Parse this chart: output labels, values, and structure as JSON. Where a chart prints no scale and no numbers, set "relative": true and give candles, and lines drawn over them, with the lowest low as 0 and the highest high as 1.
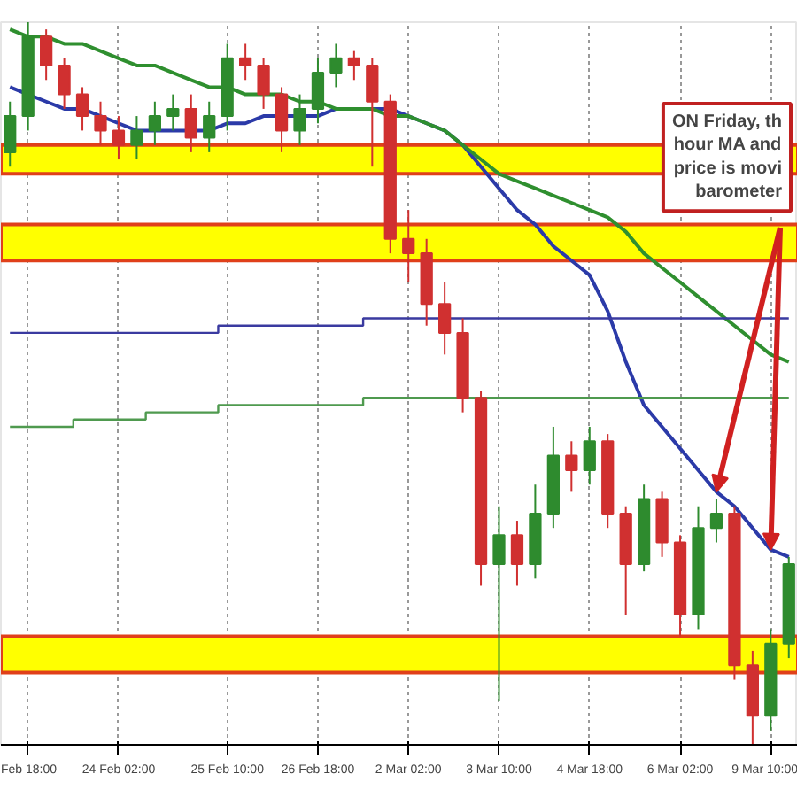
{
  "chart_data": {
    "type": "candlestick",
    "relative": true,
    "categories": [
      null,
      "Feb 18:00",
      null,
      null,
      null,
      null,
      "24 Feb 02:00",
      null,
      null,
      null,
      null,
      null,
      "25 Feb 10:00",
      null,
      null,
      null,
      null,
      "26 Feb 18:00",
      null,
      null,
      null,
      null,
      "2 Mar 02:00",
      null,
      null,
      null,
      null,
      "3 Mar 10:00",
      null,
      null,
      null,
      null,
      "4 Mar 18:00",
      null,
      null,
      null,
      null,
      "6 Mar 02:00",
      null,
      null,
      null,
      null,
      "9 Mar 10:00",
      null
    ],
    "ohlc": [
      [
        0.82,
        0.89,
        0.8,
        0.87
      ],
      [
        0.87,
        1.0,
        0.85,
        0.98
      ],
      [
        0.98,
        0.99,
        0.92,
        0.94
      ],
      [
        0.94,
        0.95,
        0.88,
        0.9
      ],
      [
        0.9,
        0.91,
        0.85,
        0.87
      ],
      [
        0.87,
        0.89,
        0.83,
        0.85
      ],
      [
        0.85,
        0.87,
        0.81,
        0.83
      ],
      [
        0.83,
        0.87,
        0.81,
        0.85
      ],
      [
        0.85,
        0.89,
        0.83,
        0.87
      ],
      [
        0.87,
        0.9,
        0.85,
        0.88
      ],
      [
        0.88,
        0.9,
        0.82,
        0.84
      ],
      [
        0.84,
        0.89,
        0.82,
        0.87
      ],
      [
        0.87,
        0.97,
        0.85,
        0.95
      ],
      [
        0.95,
        0.97,
        0.92,
        0.94
      ],
      [
        0.94,
        0.95,
        0.88,
        0.9
      ],
      [
        0.9,
        0.91,
        0.82,
        0.85
      ],
      [
        0.85,
        0.9,
        0.83,
        0.88
      ],
      [
        0.88,
        0.95,
        0.86,
        0.93
      ],
      [
        0.93,
        0.97,
        0.91,
        0.95
      ],
      [
        0.95,
        0.96,
        0.92,
        0.94
      ],
      [
        0.94,
        0.95,
        0.8,
        0.89
      ],
      [
        0.89,
        0.9,
        0.68,
        0.7
      ],
      [
        0.7,
        0.74,
        0.64,
        0.68
      ],
      [
        0.68,
        0.7,
        0.58,
        0.61
      ],
      [
        0.61,
        0.64,
        0.54,
        0.57
      ],
      [
        0.57,
        0.59,
        0.46,
        0.48
      ],
      [
        0.48,
        0.49,
        0.22,
        0.25
      ],
      [
        0.25,
        0.33,
        0.06,
        0.29
      ],
      [
        0.29,
        0.31,
        0.22,
        0.25
      ],
      [
        0.25,
        0.36,
        0.23,
        0.32
      ],
      [
        0.32,
        0.44,
        0.3,
        0.4
      ],
      [
        0.4,
        0.42,
        0.35,
        0.38
      ],
      [
        0.38,
        0.44,
        0.36,
        0.42
      ],
      [
        0.42,
        0.43,
        0.3,
        0.32
      ],
      [
        0.32,
        0.33,
        0.18,
        0.25
      ],
      [
        0.25,
        0.36,
        0.24,
        0.34
      ],
      [
        0.34,
        0.35,
        0.26,
        0.28
      ],
      [
        0.28,
        0.29,
        0.15,
        0.18
      ],
      [
        0.18,
        0.33,
        0.16,
        0.3
      ],
      [
        0.3,
        0.34,
        0.28,
        0.32
      ],
      [
        0.32,
        0.33,
        0.09,
        0.11
      ],
      [
        0.11,
        0.13,
        0.0,
        0.04
      ],
      [
        0.04,
        0.16,
        0.02,
        0.14
      ],
      [
        0.14,
        0.26,
        0.12,
        0.25
      ]
    ],
    "colors": [
      "#2e8b2e",
      "#2e8b2e",
      "#d03030",
      "#d03030",
      "#d03030",
      "#d03030",
      "#d03030",
      "#2e8b2e",
      "#2e8b2e",
      "#2e8b2e",
      "#d03030",
      "#2e8b2e",
      "#2e8b2e",
      "#d03030",
      "#d03030",
      "#d03030",
      "#2e8b2e",
      "#2e8b2e",
      "#2e8b2e",
      "#d03030",
      "#d03030",
      "#d03030",
      "#d03030",
      "#d03030",
      "#d03030",
      "#d03030",
      "#d03030",
      "#2e8b2e",
      "#d03030",
      "#2e8b2e",
      "#2e8b2e",
      "#d03030",
      "#2e8b2e",
      "#d03030",
      "#d03030",
      "#2e8b2e",
      "#d03030",
      "#d03030",
      "#2e8b2e",
      "#2e8b2e",
      "#d03030",
      "#d03030",
      "#2e8b2e",
      "#2e8b2e"
    ],
    "series": [
      {
        "type": "line",
        "color": "#2b3aa8",
        "values": [
          0.91,
          0.9,
          0.89,
          0.88,
          0.88,
          0.87,
          0.86,
          0.85,
          0.85,
          0.85,
          0.85,
          0.85,
          0.86,
          0.86,
          0.87,
          0.87,
          0.87,
          0.87,
          0.88,
          0.88,
          0.88,
          0.88,
          0.87,
          0.86,
          0.85,
          0.83,
          0.8,
          0.77,
          0.74,
          0.72,
          0.69,
          0.67,
          0.65,
          0.6,
          0.53,
          0.47,
          0.44,
          0.41,
          0.38,
          0.35,
          0.33,
          0.3,
          0.27,
          0.26
        ]
      },
      {
        "type": "line",
        "color": "#2f8f2f",
        "values": [
          0.99,
          0.98,
          0.98,
          0.97,
          0.97,
          0.96,
          0.95,
          0.94,
          0.94,
          0.93,
          0.92,
          0.91,
          0.91,
          0.9,
          0.9,
          0.9,
          0.89,
          0.89,
          0.88,
          0.88,
          0.88,
          0.87,
          0.87,
          0.86,
          0.85,
          0.83,
          0.81,
          0.79,
          0.78,
          0.77,
          0.76,
          0.75,
          0.74,
          0.73,
          0.71,
          0.68,
          0.66,
          0.64,
          0.62,
          0.6,
          0.58,
          0.56,
          0.54,
          0.53
        ]
      },
      {
        "type": "step",
        "color": "#3a3aa0",
        "values": [
          0.57,
          0.57,
          0.57,
          0.57,
          0.57,
          0.57,
          0.57,
          0.57,
          0.57,
          0.57,
          0.57,
          0.57,
          0.58,
          0.58,
          0.58,
          0.58,
          0.58,
          0.58,
          0.58,
          0.58,
          0.59,
          0.59,
          0.59,
          0.59,
          0.59,
          0.59,
          0.59,
          0.59,
          0.59,
          0.59,
          0.59,
          0.59,
          0.59,
          0.59,
          0.59,
          0.59,
          0.59,
          0.59,
          0.59,
          0.59,
          0.59,
          0.59,
          0.59,
          0.59
        ]
      },
      {
        "type": "step",
        "color": "#4f9a4f",
        "values": [
          0.44,
          0.44,
          0.44,
          0.44,
          0.45,
          0.45,
          0.45,
          0.45,
          0.46,
          0.46,
          0.46,
          0.46,
          0.47,
          0.47,
          0.47,
          0.47,
          0.47,
          0.47,
          0.47,
          0.47,
          0.48,
          0.48,
          0.48,
          0.48,
          0.48,
          0.48,
          0.48,
          0.48,
          0.48,
          0.48,
          0.48,
          0.48,
          0.48,
          0.48,
          0.48,
          0.48,
          0.48,
          0.48,
          0.48,
          0.48,
          0.48,
          0.48,
          0.48,
          0.48
        ]
      }
    ],
    "bands": [
      {
        "axis": "y",
        "from": 0.79,
        "to": 0.83,
        "color": "#ffff00"
      },
      {
        "axis": "y",
        "from": 0.67,
        "to": 0.72,
        "color": "#ffff00"
      },
      {
        "axis": "y",
        "from": 0.1,
        "to": 0.15,
        "color": "#ffff00"
      }
    ],
    "grid": "x",
    "tick_labels": "x",
    "annotations": [
      "ON Friday, th\nhour MA and\nprice is movi\nbarometer"
    ]
  }
}
